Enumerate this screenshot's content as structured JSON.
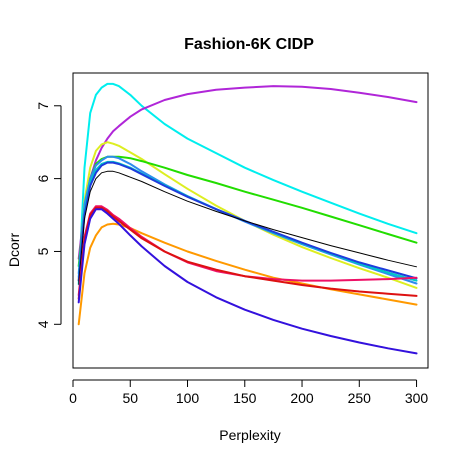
{
  "chart_data": {
    "type": "line",
    "title": "Fashion-6K CIDP",
    "xlabel": "Perplexity",
    "ylabel": "Dcorr",
    "xlim": [
      0,
      310
    ],
    "ylim": [
      3.4,
      7.45
    ],
    "x_ticks": [
      0,
      50,
      100,
      150,
      200,
      250,
      300
    ],
    "y_ticks": [
      4,
      5,
      6,
      7
    ],
    "grid": false,
    "legend": "none",
    "x": [
      5,
      10,
      15,
      20,
      25,
      30,
      35,
      40,
      50,
      60,
      80,
      100,
      125,
      150,
      175,
      200,
      225,
      250,
      275,
      300
    ],
    "series": [
      {
        "color": "#00EEEE",
        "values": [
          4.55,
          6.15,
          6.9,
          7.15,
          7.25,
          7.3,
          7.3,
          7.27,
          7.15,
          7.0,
          6.75,
          6.55,
          6.35,
          6.15,
          5.98,
          5.82,
          5.67,
          5.52,
          5.38,
          5.25
        ]
      },
      {
        "color": "#B026D8",
        "values": [
          4.9,
          5.6,
          6.0,
          6.25,
          6.42,
          6.55,
          6.65,
          6.72,
          6.85,
          6.95,
          7.08,
          7.16,
          7.22,
          7.25,
          7.27,
          7.26,
          7.23,
          7.18,
          7.12,
          7.05
        ]
      },
      {
        "color": "#DDEE22",
        "values": [
          4.6,
          5.7,
          6.15,
          6.38,
          6.47,
          6.5,
          6.48,
          6.45,
          6.36,
          6.27,
          6.06,
          5.86,
          5.63,
          5.42,
          5.23,
          5.06,
          4.91,
          4.77,
          4.64,
          4.5
        ]
      },
      {
        "color": "#22DD00",
        "values": [
          4.8,
          5.6,
          6.0,
          6.2,
          6.27,
          6.3,
          6.3,
          6.3,
          6.28,
          6.24,
          6.15,
          6.05,
          5.94,
          5.82,
          5.71,
          5.6,
          5.48,
          5.36,
          5.24,
          5.12
        ]
      },
      {
        "color": "#2E8BEE",
        "values": [
          4.7,
          5.65,
          6.0,
          6.18,
          6.25,
          6.3,
          6.3,
          6.28,
          6.2,
          6.1,
          5.92,
          5.76,
          5.58,
          5.41,
          5.25,
          5.1,
          4.96,
          4.82,
          4.69,
          4.56
        ]
      },
      {
        "color": "#00C8C8",
        "values": [
          4.65,
          5.55,
          5.95,
          6.12,
          6.2,
          6.23,
          6.23,
          6.21,
          6.15,
          6.07,
          5.91,
          5.76,
          5.58,
          5.42,
          5.26,
          5.11,
          4.97,
          4.83,
          4.71,
          4.6
        ]
      },
      {
        "color": "#1E3CDD",
        "values": [
          4.6,
          5.5,
          5.9,
          6.08,
          6.18,
          6.22,
          6.22,
          6.2,
          6.14,
          6.06,
          5.9,
          5.75,
          5.58,
          5.42,
          5.27,
          5.12,
          4.98,
          4.85,
          4.74,
          4.63
        ]
      },
      {
        "color": "#000000",
        "values": [
          4.55,
          5.45,
          5.82,
          6.0,
          6.08,
          6.1,
          6.1,
          6.08,
          6.02,
          5.96,
          5.82,
          5.69,
          5.55,
          5.42,
          5.3,
          5.19,
          5.08,
          4.98,
          4.88,
          4.79
        ]
      },
      {
        "color": "#FF9900",
        "values": [
          4.0,
          4.7,
          5.05,
          5.22,
          5.33,
          5.37,
          5.38,
          5.37,
          5.32,
          5.25,
          5.12,
          5.0,
          4.87,
          4.75,
          4.64,
          4.56,
          4.48,
          4.41,
          4.34,
          4.27
        ]
      },
      {
        "color": "#EE1166",
        "values": [
          4.4,
          5.2,
          5.52,
          5.62,
          5.62,
          5.57,
          5.5,
          5.45,
          5.32,
          5.2,
          5.0,
          4.85,
          4.73,
          4.66,
          4.62,
          4.6,
          4.6,
          4.61,
          4.62,
          4.64
        ]
      },
      {
        "color": "#DD1111",
        "values": [
          4.35,
          5.15,
          5.5,
          5.6,
          5.6,
          5.55,
          5.48,
          5.42,
          5.3,
          5.18,
          5.0,
          4.86,
          4.75,
          4.66,
          4.6,
          4.54,
          4.49,
          4.45,
          4.42,
          4.39
        ]
      },
      {
        "color": "#3311DD",
        "values": [
          4.3,
          5.1,
          5.45,
          5.58,
          5.58,
          5.52,
          5.45,
          5.38,
          5.22,
          5.07,
          4.8,
          4.58,
          4.37,
          4.2,
          4.06,
          3.94,
          3.84,
          3.75,
          3.67,
          3.6
        ]
      }
    ]
  }
}
